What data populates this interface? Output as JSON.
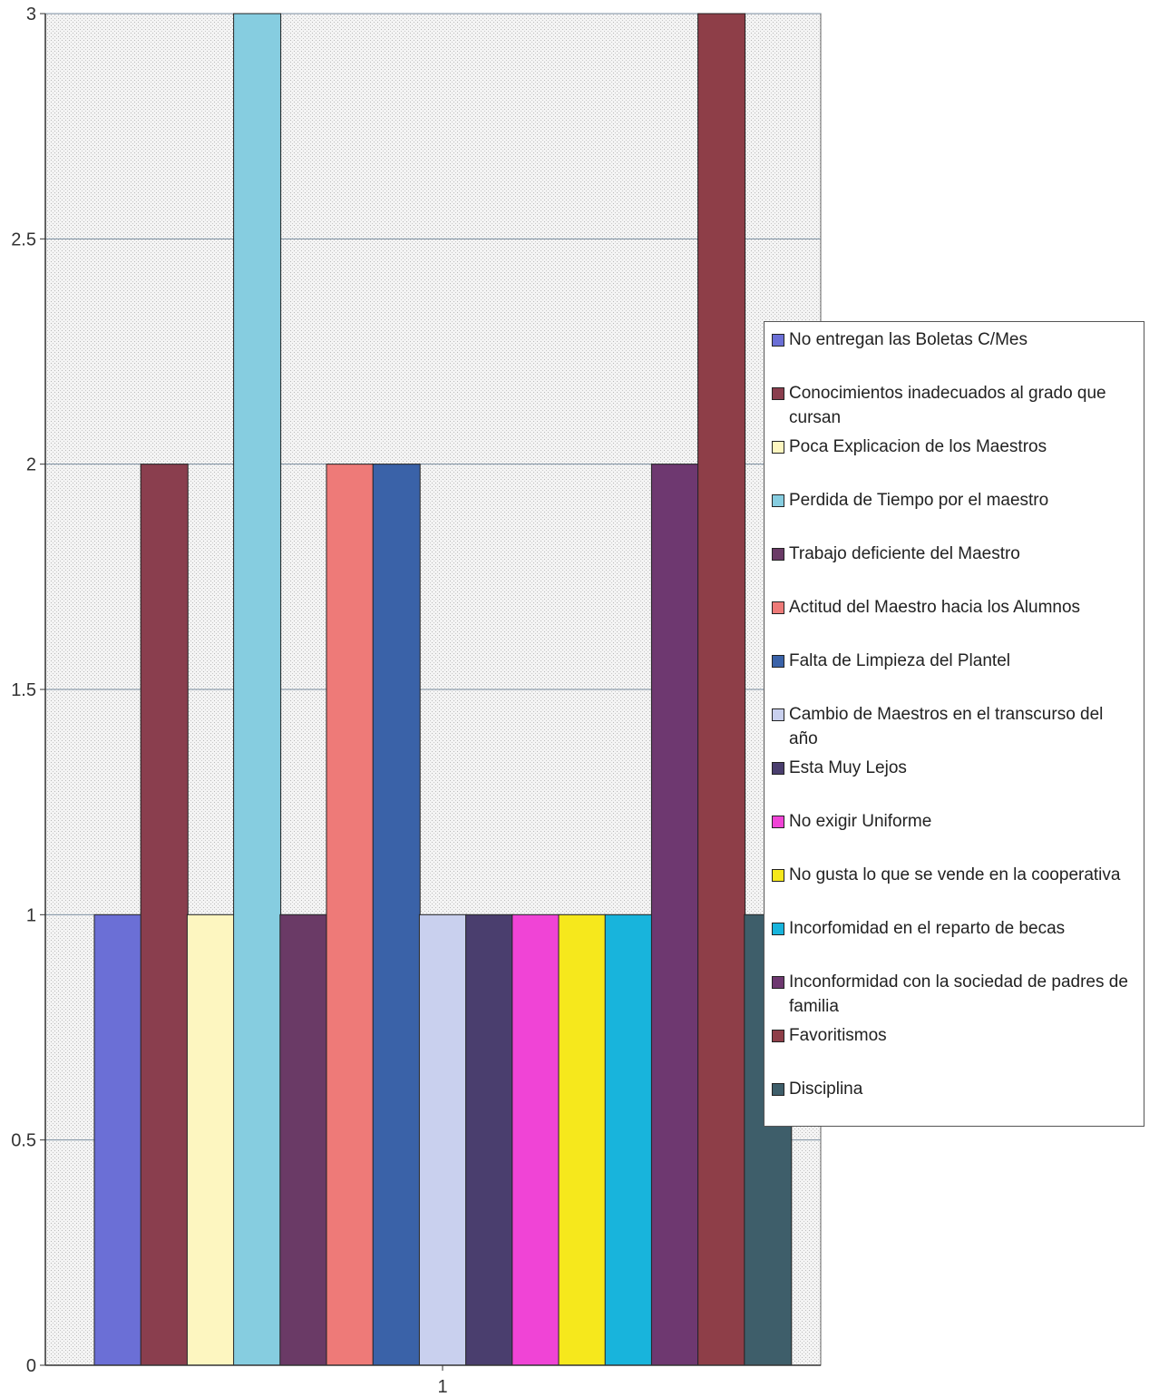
{
  "chart_data": {
    "type": "bar",
    "categories": [
      "1"
    ],
    "ylim": [
      0,
      3
    ],
    "yticks": [
      "0",
      "0.5",
      "1",
      "1.5",
      "2",
      "2.5",
      "3"
    ],
    "grid": true,
    "legend_position": "right",
    "series": [
      {
        "name": "No entregan las Boletas C/Mes",
        "values": [
          1
        ],
        "color": "#6b6fd6"
      },
      {
        "name": "Conocimientos inadecuados al grado que cursan",
        "values": [
          2
        ],
        "color": "#8a3e4e"
      },
      {
        "name": "Poca Explicacion de los Maestros",
        "values": [
          1
        ],
        "color": "#fdf6c0"
      },
      {
        "name": "Perdida de Tiempo por el maestro",
        "values": [
          3
        ],
        "color": "#86cde0"
      },
      {
        "name": "Trabajo deficiente del Maestro",
        "values": [
          1
        ],
        "color": "#6a3a66"
      },
      {
        "name": "Actitud del Maestro hacia los Alumnos",
        "values": [
          2
        ],
        "color": "#ee7a78"
      },
      {
        "name": "Falta de Limpieza del Plantel",
        "values": [
          2
        ],
        "color": "#3a62a8"
      },
      {
        "name": "Cambio de Maestros en el transcurso del año",
        "values": [
          1
        ],
        "color": "#c9d0ee"
      },
      {
        "name": "Esta Muy Lejos",
        "values": [
          1
        ],
        "color": "#4a3e6e"
      },
      {
        "name": "No exigir Uniforme",
        "values": [
          1
        ],
        "color": "#f044d6"
      },
      {
        "name": "No gusta lo que se vende en la cooperativa",
        "values": [
          1
        ],
        "color": "#f6e81c"
      },
      {
        "name": "Incorfomidad en el reparto de becas",
        "values": [
          1
        ],
        "color": "#18b4dc"
      },
      {
        "name": "Inconformidad con la sociedad de padres de familia",
        "values": [
          2
        ],
        "color": "#6e3870"
      },
      {
        "name": "Favoritismos",
        "values": [
          3
        ],
        "color": "#8e3e48"
      },
      {
        "name": "Disciplina",
        "values": [
          1
        ],
        "color": "#3e5e6a"
      }
    ]
  }
}
